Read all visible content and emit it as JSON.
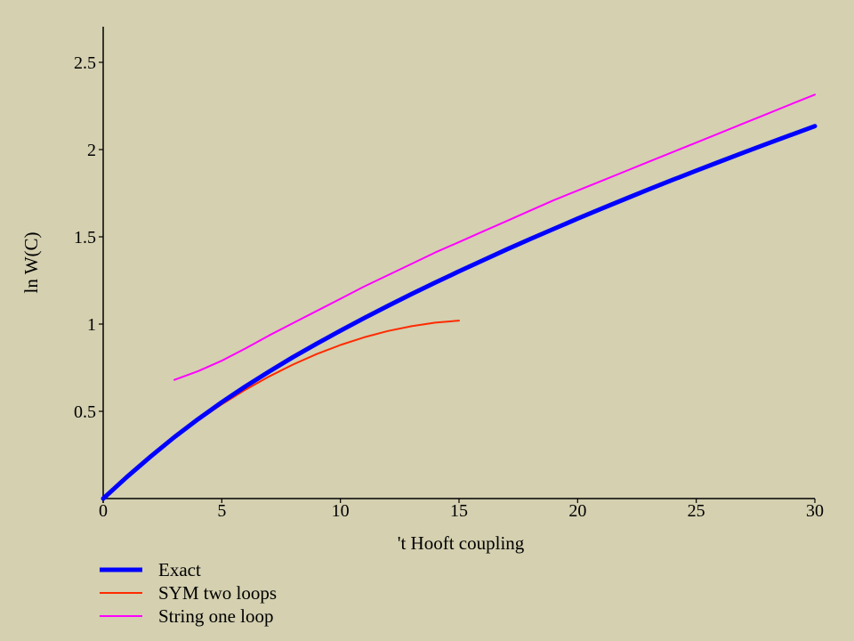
{
  "chart_data": {
    "type": "line",
    "xlabel": "'t Hooft coupling",
    "ylabel": "ln W(C)",
    "xlim": [
      0,
      30
    ],
    "ylim": [
      0,
      2.7
    ],
    "xticks": [
      0,
      5,
      10,
      15,
      20,
      25,
      30
    ],
    "xtick_labels": [
      "0",
      "5",
      "10",
      "15",
      "20",
      "25",
      "30"
    ],
    "yticks": [
      0.5,
      1,
      1.5,
      2,
      2.5
    ],
    "ytick_labels": [
      "0.5",
      "1",
      "1.5",
      "2",
      "2.5"
    ],
    "grid": false,
    "legend_position": "bottom-left",
    "series": [
      {
        "name": "Exact",
        "color": "#0000ff",
        "x": [
          0,
          1,
          2,
          3,
          4,
          5,
          6,
          7,
          8,
          9,
          10,
          11,
          12,
          13,
          14,
          15,
          16,
          17,
          18,
          19,
          20,
          21,
          22,
          23,
          24,
          25,
          26,
          27,
          28,
          29,
          30
        ],
        "y": [
          0.0,
          0.124,
          0.241,
          0.352,
          0.455,
          0.552,
          0.643,
          0.728,
          0.81,
          0.887,
          0.962,
          1.034,
          1.104,
          1.172,
          1.238,
          1.302,
          1.365,
          1.427,
          1.487,
          1.546,
          1.604,
          1.661,
          1.717,
          1.772,
          1.826,
          1.879,
          1.931,
          1.983,
          2.034,
          2.084,
          2.134
        ]
      },
      {
        "name": "SYM two loops",
        "color": "#ff2a00",
        "x": [
          0,
          1,
          2,
          3,
          4,
          5,
          6,
          7,
          8,
          9,
          10,
          11,
          12,
          13,
          14,
          15
        ],
        "y": [
          0.0,
          0.124,
          0.24,
          0.348,
          0.448,
          0.54,
          0.624,
          0.7,
          0.768,
          0.828,
          0.88,
          0.924,
          0.96,
          0.988,
          1.008,
          1.02
        ]
      },
      {
        "name": "String one loop",
        "color": "#ff00ff",
        "x": [
          3,
          4,
          5,
          6,
          7,
          8,
          9,
          10,
          11,
          12,
          13,
          14,
          15,
          16,
          17,
          18,
          19,
          20,
          21,
          22,
          23,
          24,
          25,
          26,
          27,
          28,
          29,
          30
        ],
        "y": [
          0.68,
          0.73,
          0.79,
          0.86,
          0.935,
          1.005,
          1.075,
          1.145,
          1.215,
          1.28,
          1.345,
          1.41,
          1.47,
          1.53,
          1.59,
          1.65,
          1.71,
          1.765,
          1.82,
          1.875,
          1.93,
          1.985,
          2.04,
          2.095,
          2.15,
          2.205,
          2.26,
          2.315
        ]
      }
    ]
  }
}
